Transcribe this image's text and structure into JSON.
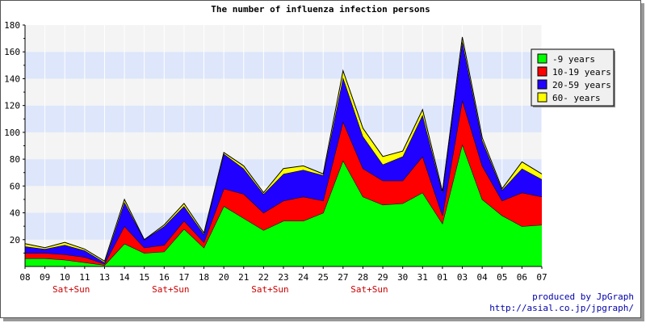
{
  "chart_data": {
    "type": "area",
    "stacked": true,
    "title": "The number of influenza infection persons",
    "categories": [
      "08",
      "09",
      "10",
      "11",
      "13",
      "14",
      "15",
      "16",
      "17",
      "18",
      "20",
      "21",
      "22",
      "23",
      "24",
      "25",
      "27",
      "28",
      "29",
      "30",
      "31",
      "01",
      "03",
      "04",
      "05",
      "06",
      "07"
    ],
    "weekend_markers": [
      {
        "category": "10",
        "label": "Sat+Sun"
      },
      {
        "category": "16",
        "label": "Sat+Sun"
      },
      {
        "category": "22",
        "label": "Sat+Sun"
      },
      {
        "category": "28",
        "label": "Sat+Sun"
      }
    ],
    "ylim": [
      0,
      180
    ],
    "yticks": [
      20,
      40,
      60,
      80,
      100,
      120,
      140,
      160,
      180
    ],
    "grid": true,
    "band_colors": [
      "#f4f4f4",
      "#dde6fb"
    ],
    "legend_placement": "top-right",
    "series": [
      {
        "name": "-9 years",
        "color": "#00ff00",
        "values": [
          6,
          6,
          5,
          3,
          1,
          17,
          10,
          11,
          28,
          14,
          45,
          36,
          27,
          34,
          34,
          40,
          79,
          52,
          46,
          47,
          55,
          32,
          91,
          50,
          38,
          30,
          31
        ]
      },
      {
        "name": "10-19 years",
        "color": "#ff0000",
        "values": [
          4,
          4,
          4,
          4,
          1,
          13,
          4,
          5,
          6,
          4,
          13,
          18,
          13,
          15,
          18,
          9,
          29,
          21,
          18,
          17,
          27,
          6,
          33,
          25,
          11,
          25,
          21
        ]
      },
      {
        "name": "20-59 years",
        "color": "#2000ff",
        "values": [
          5,
          3,
          7,
          5,
          1,
          18,
          6,
          14,
          11,
          6,
          26,
          19,
          14,
          20,
          20,
          19,
          33,
          24,
          12,
          18,
          31,
          17,
          44,
          19,
          8,
          18,
          13
        ]
      },
      {
        "name": "60- years",
        "color": "#ffff00",
        "values": [
          2,
          1,
          2,
          1,
          1,
          2,
          0,
          1,
          2,
          1,
          1,
          2,
          1,
          4,
          3,
          1,
          5,
          6,
          6,
          4,
          4,
          1,
          3,
          2,
          1,
          5,
          4
        ]
      }
    ]
  },
  "credit": {
    "line1": "produced by JpGraph",
    "line2": "http://asial.co.jp/jpgraph/"
  }
}
